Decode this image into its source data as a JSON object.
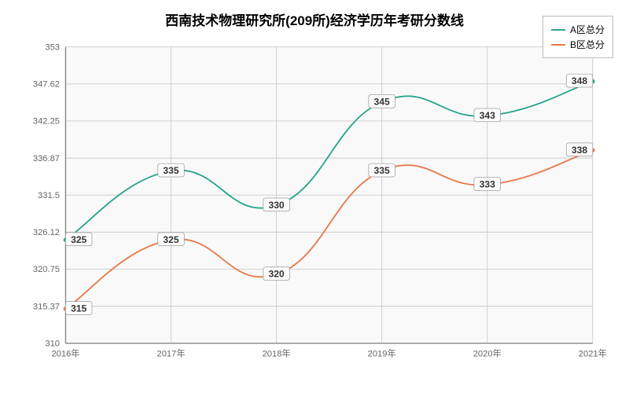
{
  "chart": {
    "type": "line",
    "title": "西南技术物理研究所(209所)经济学历年考研分数线",
    "title_fontsize": 17,
    "background_color": "#f9f9f9",
    "grid_color": "#cccccc",
    "axis_color": "#888888",
    "text_color": "#555555",
    "x": {
      "categories": [
        "2016年",
        "2017年",
        "2018年",
        "2019年",
        "2020年",
        "2021年"
      ],
      "fontsize": 12
    },
    "y": {
      "min": 310,
      "max": 353,
      "ticks": [
        310,
        315.37,
        320.75,
        326.12,
        331.5,
        336.87,
        342.25,
        347.62,
        353
      ],
      "tick_labels": [
        "310",
        "315.37",
        "320.75",
        "326.12",
        "331.5",
        "336.87",
        "342.25",
        "347.62",
        "353"
      ],
      "fontsize": 12
    },
    "series": [
      {
        "name": "A区总分",
        "color": "#2aa58d",
        "values": [
          325,
          335,
          330,
          345,
          343,
          348
        ],
        "line_width": 2,
        "marker_radius": 3
      },
      {
        "name": "B区总分",
        "color": "#e87b4c",
        "values": [
          315,
          325,
          320,
          335,
          333,
          338
        ],
        "line_width": 2,
        "marker_radius": 3
      }
    ],
    "legend": {
      "position": "top-right",
      "fontsize": 12
    }
  }
}
